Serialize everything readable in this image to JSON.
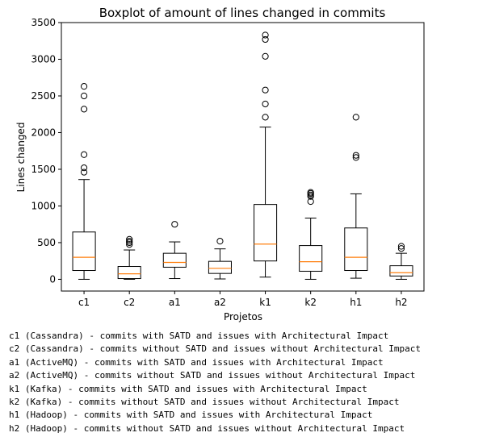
{
  "chart_data": {
    "type": "boxplot",
    "title": "Boxplot of amount of lines changed in commits",
    "xlabel": "Projetos",
    "ylabel": "Lines changed",
    "ylim": [
      -160,
      3500
    ],
    "yticks": [
      0,
      500,
      1000,
      1500,
      2000,
      2500,
      3000,
      3500
    ],
    "grid": false,
    "box_color": "#000000",
    "median_color": "#ff7f0e",
    "categories": [
      "c1",
      "c2",
      "a1",
      "a2",
      "k1",
      "k2",
      "h1",
      "h2"
    ],
    "boxes": [
      {
        "label": "c1",
        "whisker_low": 0,
        "q1": 120,
        "median": 300,
        "q3": 645,
        "whisker_high": 1360,
        "outliers": [
          1460,
          1520,
          1700,
          2320,
          2500,
          2630
        ]
      },
      {
        "label": "c2",
        "whisker_low": 0,
        "q1": 10,
        "median": 75,
        "q3": 175,
        "whisker_high": 400,
        "outliers": [
          475,
          500,
          520,
          545
        ]
      },
      {
        "label": "a1",
        "whisker_low": 10,
        "q1": 165,
        "median": 230,
        "q3": 355,
        "whisker_high": 510,
        "outliers": [
          750
        ]
      },
      {
        "label": "a2",
        "whisker_low": 5,
        "q1": 80,
        "median": 150,
        "q3": 245,
        "whisker_high": 415,
        "outliers": [
          520
        ]
      },
      {
        "label": "k1",
        "whisker_low": 30,
        "q1": 250,
        "median": 480,
        "q3": 1020,
        "whisker_high": 2075,
        "outliers": [
          2210,
          2390,
          2580,
          3040,
          3270,
          3330
        ]
      },
      {
        "label": "k2",
        "whisker_low": 0,
        "q1": 110,
        "median": 240,
        "q3": 460,
        "whisker_high": 835,
        "outliers": [
          1060,
          1130,
          1150,
          1170,
          1185
        ]
      },
      {
        "label": "h1",
        "whisker_low": 15,
        "q1": 120,
        "median": 300,
        "q3": 700,
        "whisker_high": 1165,
        "outliers": [
          1660,
          1690,
          2210
        ]
      },
      {
        "label": "h2",
        "whisker_low": 0,
        "q1": 45,
        "median": 90,
        "q3": 185,
        "whisker_high": 355,
        "outliers": [
          420,
          450
        ]
      }
    ]
  },
  "legend_lines": [
    "c1 (Cassandra) - commits with SATD and issues with Architectural Impact",
    "c2 (Cassandra) - commits without SATD and issues without Architectural Impact",
    "a1 (ActiveMQ) - commits with SATD and issues with Architectural Impact",
    "a2 (ActiveMQ) - commits without SATD and issues without Architectural Impact",
    "k1 (Kafka) - commits with SATD and issues with Architectural Impact",
    "k2 (Kafka) - commits without SATD and issues without Architectural Impact",
    "h1 (Hadoop) - commits with SATD and issues with Architectural Impact",
    "h2 (Hadoop) - commits without SATD and issues without Architectural Impact"
  ]
}
